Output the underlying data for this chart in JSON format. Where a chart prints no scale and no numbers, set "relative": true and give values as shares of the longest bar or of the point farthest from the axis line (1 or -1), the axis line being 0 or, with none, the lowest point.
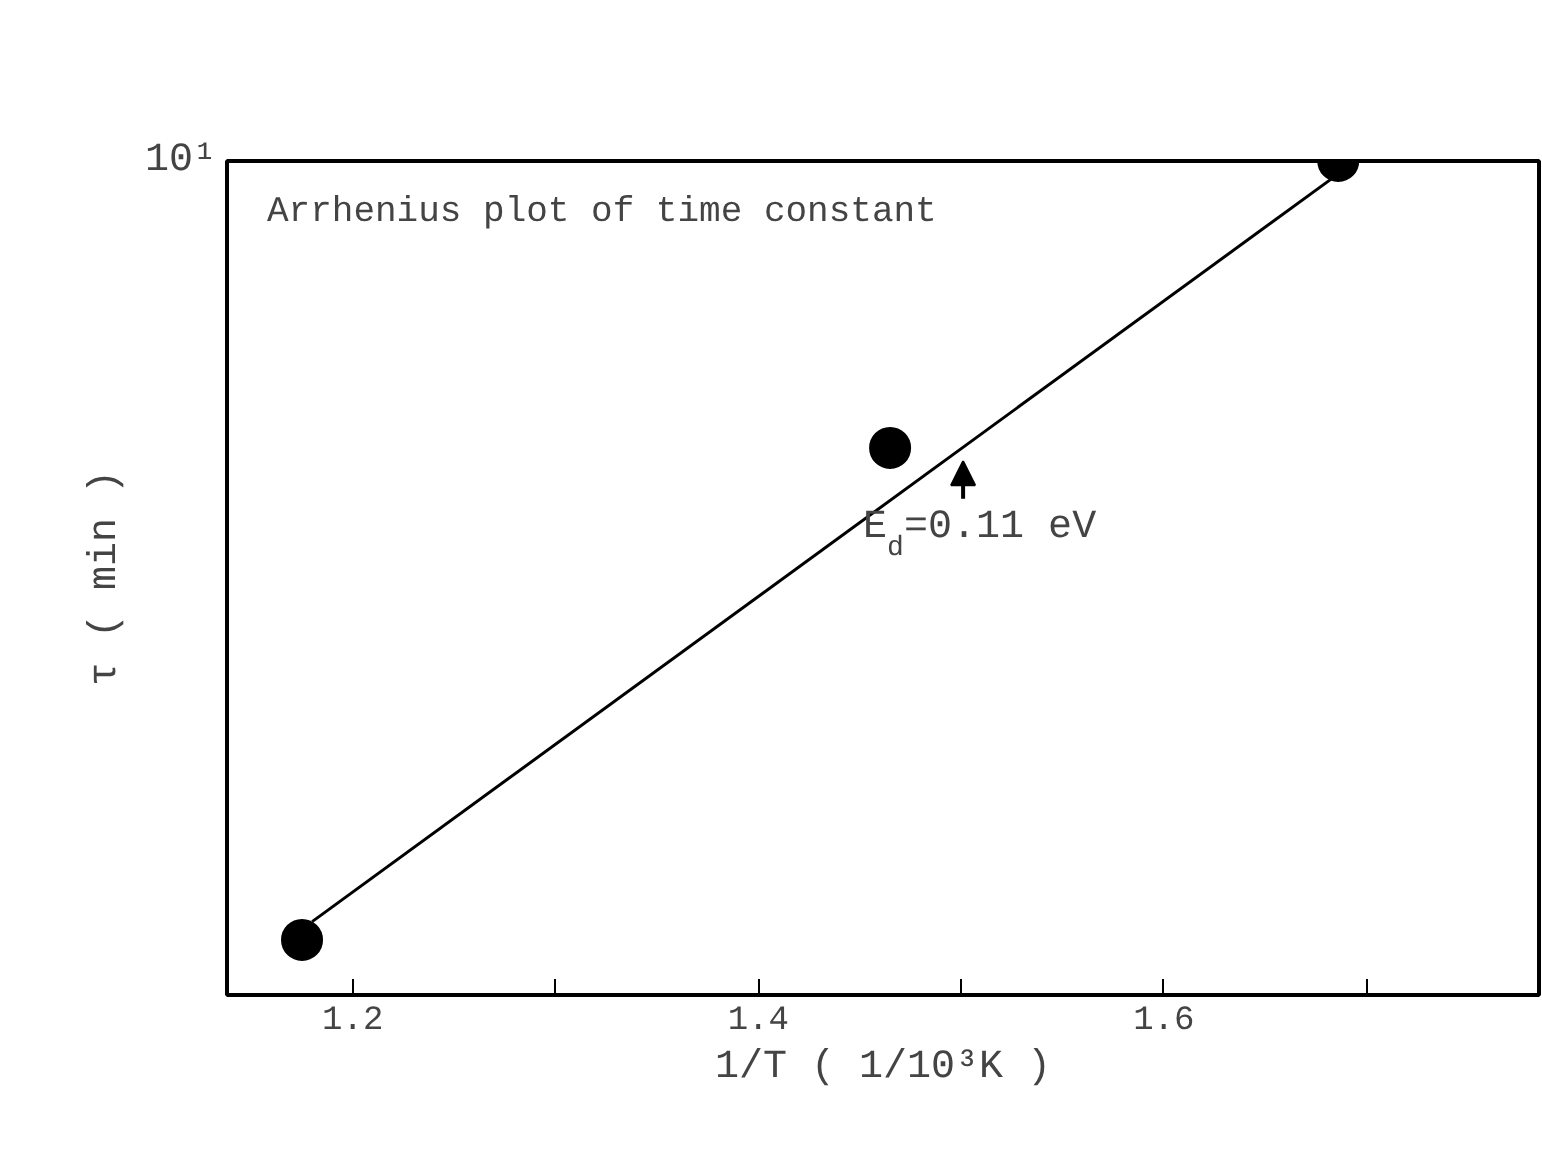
{
  "chart_data": {
    "type": "scatter",
    "title": "Arrhenius plot of time constant",
    "xlabel": "1/T ( 1/10³K )",
    "ylabel": "τ ( min )",
    "relative": true,
    "x": [
      1.175,
      1.465,
      1.686
    ],
    "series": [
      {
        "marker": "circle",
        "color": "#000000",
        "values": [
          0.066,
          0.656,
          1.0
        ]
      },
      {
        "type": "line",
        "color": "#000000",
        "x": [
          1.18,
          1.684
        ],
        "values": [
          0.088,
          0.981
        ]
      }
    ],
    "xlim": [
      1.138,
      1.785
    ],
    "xticks": [
      {
        "value": 1.2,
        "label": "1.2"
      },
      {
        "value": 1.3,
        "label": null
      },
      {
        "value": 1.4,
        "label": "1.4"
      },
      {
        "value": 1.5,
        "label": null
      },
      {
        "value": 1.6,
        "label": "1.6"
      },
      {
        "value": 1.7,
        "label": null
      }
    ],
    "annotations": [
      "10¹",
      {
        "text": "E$_{d}$=0.11 eV",
        "x": 1.501,
        "y": 0.64
      }
    ],
    "line_style": "solid",
    "grid": false
  }
}
